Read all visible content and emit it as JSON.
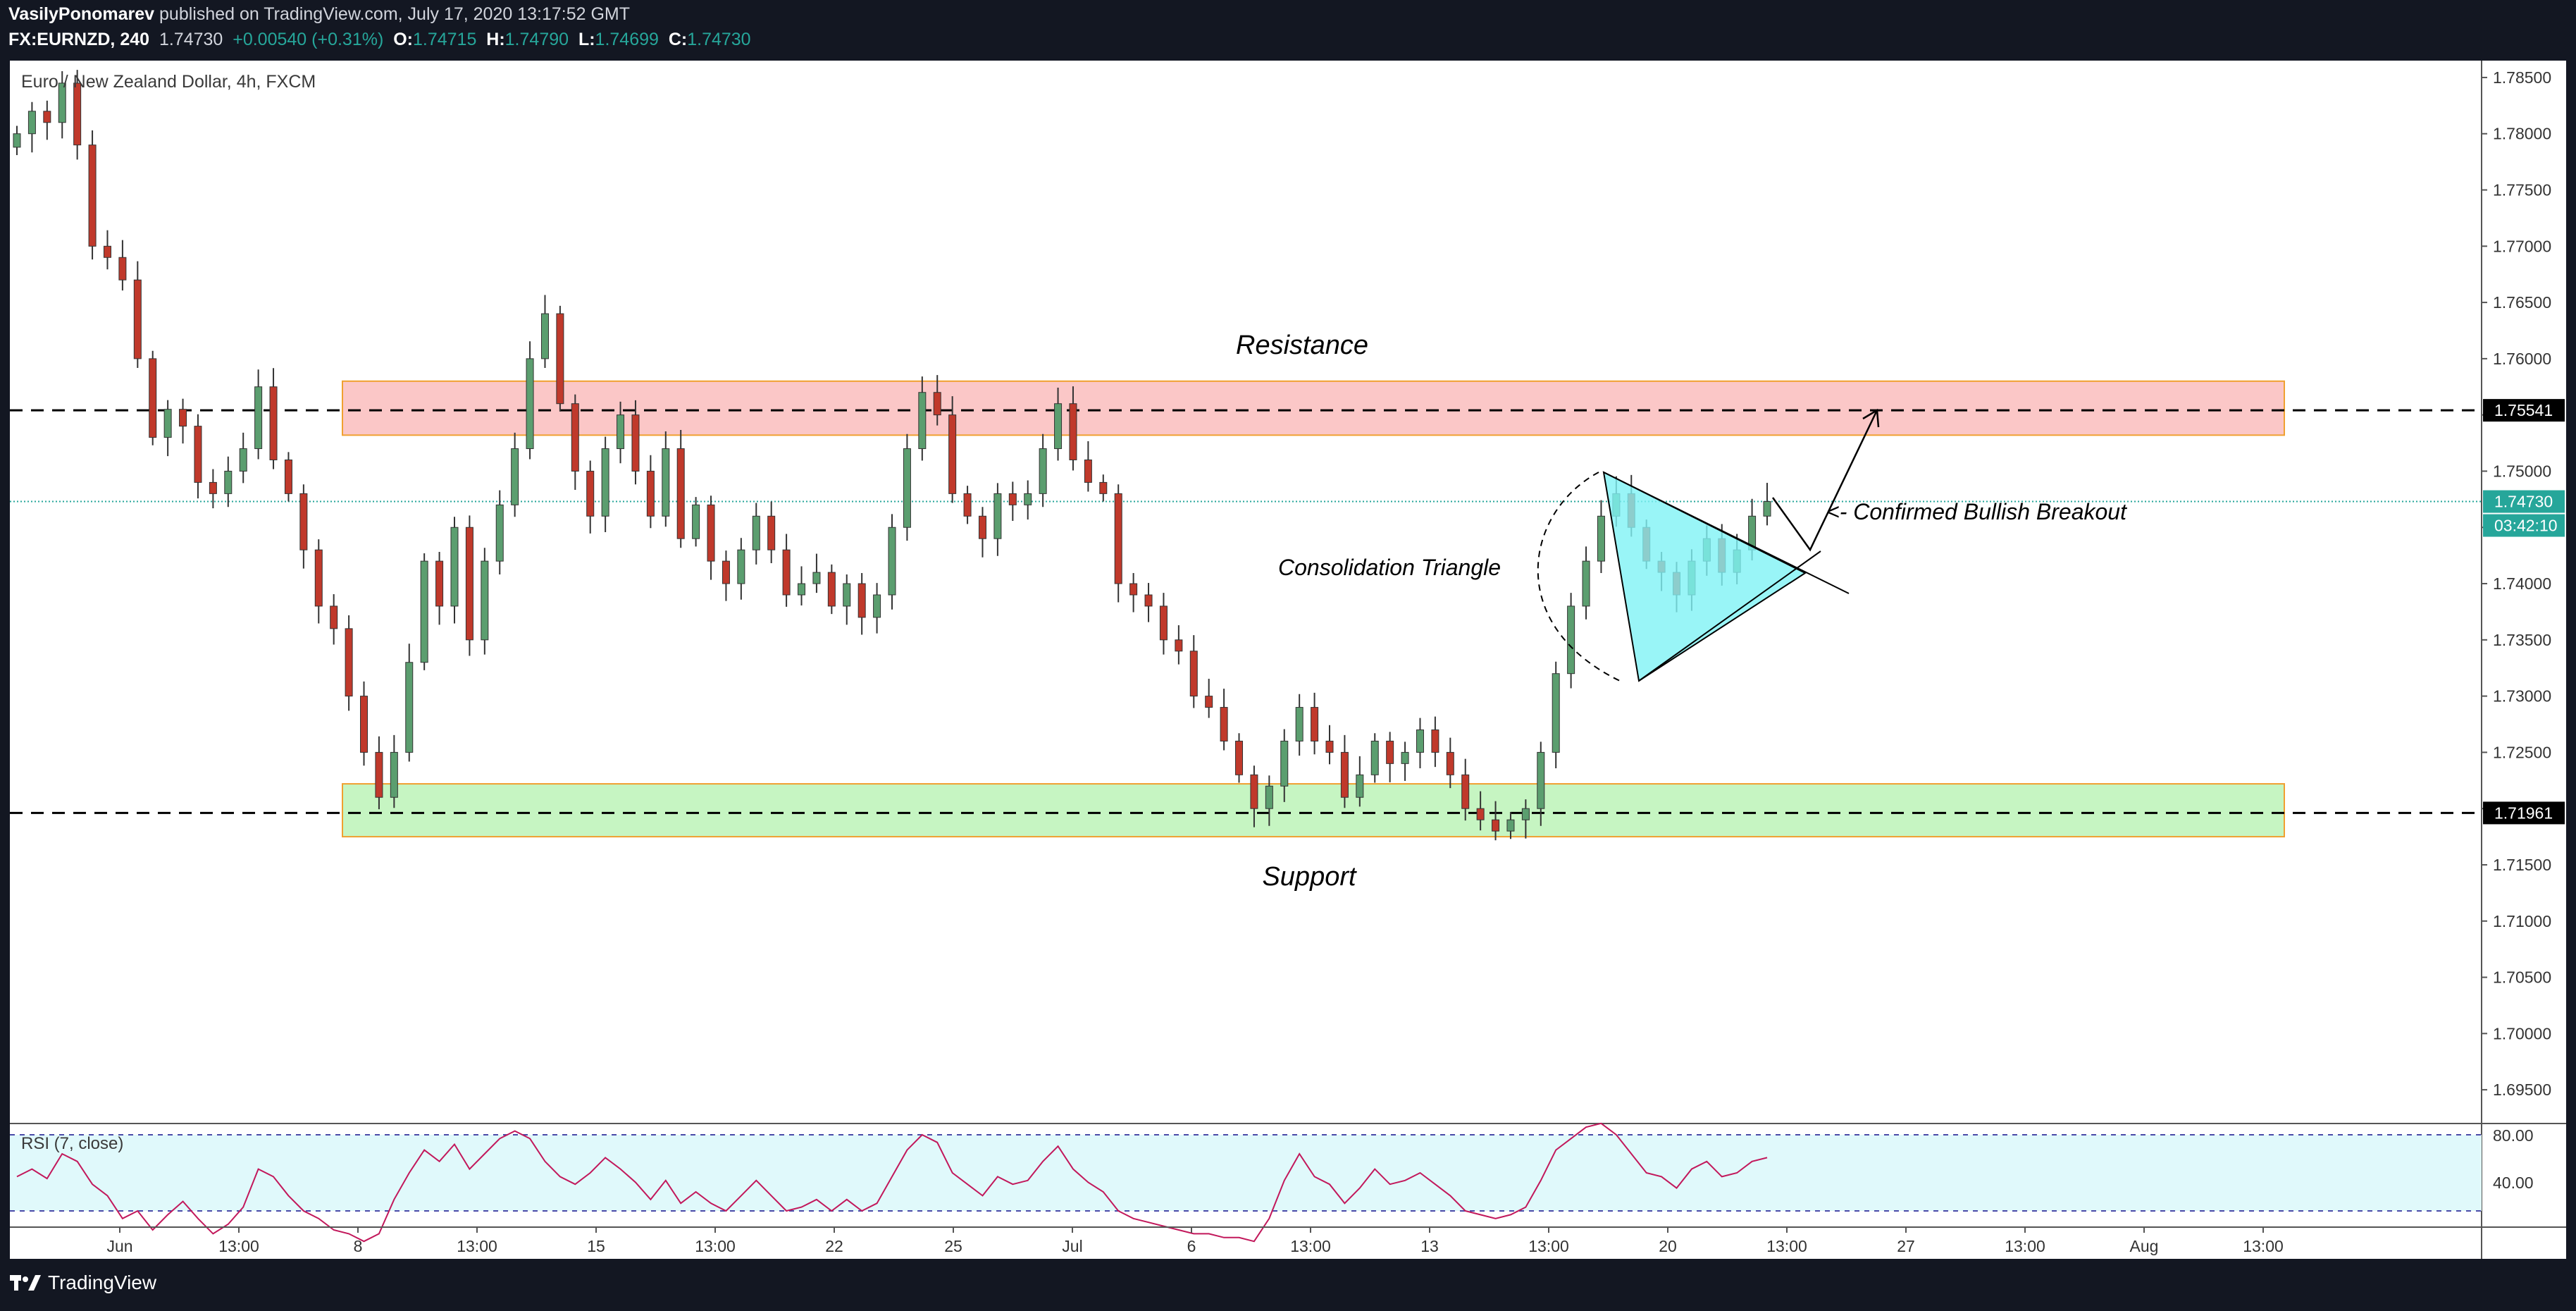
{
  "header": {
    "author": "VasilyPonomarev",
    "published": "published on TradingView.com, July 17, 2020 13:17:52 GMT",
    "symbol": "FX:EURNZD, 240",
    "last": "1.74730",
    "change": "+0.00540 (+0.31%)",
    "o_label": "O:",
    "o": "1.74715",
    "h_label": "H:",
    "h": "1.74790",
    "l_label": "L:",
    "l": "1.74699",
    "c_label": "C:",
    "c": "1.74730"
  },
  "chart_title": "Euro / New Zealand Dollar, 4h, FXCM",
  "footer": {
    "brand": "TradingView"
  },
  "colors": {
    "up": "#26a69a",
    "up_body": "#5b9e6f",
    "down_body": "#c0392b",
    "resistance_fill": "#fbc7c7",
    "support_fill": "#c6f5c2",
    "zone_border": "#f0a030",
    "triangle_fill": "#7ff3f5",
    "rsi": "#c2185b",
    "rsi_band": "#e0f9fb",
    "price_line": "#26a69a"
  },
  "price_scale": {
    "ticks": [
      "1.78500",
      "1.78000",
      "1.77500",
      "1.77000",
      "1.76500",
      "1.76000",
      "1.75500",
      "1.75000",
      "1.74500",
      "1.74000",
      "1.73500",
      "1.73000",
      "1.72500",
      "1.72000",
      "1.71500",
      "1.71000",
      "1.70500",
      "1.70000",
      "1.69500"
    ],
    "resistance_level": "1.75541",
    "support_level": "1.71961",
    "current_price": "1.74730",
    "countdown": "03:42:10"
  },
  "rsi": {
    "label": "RSI (7, close)",
    "levels": [
      "80.00",
      "40.00"
    ]
  },
  "time_axis": [
    "Jun",
    "13:00",
    "8",
    "13:00",
    "15",
    "13:00",
    "22",
    "25",
    "Jul",
    "6",
    "13:00",
    "13",
    "13:00",
    "20",
    "13:00",
    "27",
    "13:00",
    "Aug",
    "13:00"
  ],
  "annotations": {
    "resistance": "Resistance",
    "support": "Support",
    "triangle": "Consolidation Triangle",
    "breakout": "<- Confirmed Bullish Breakout"
  },
  "chart_data": {
    "type": "candlestick",
    "title": "Euro / New Zealand Dollar, 4h, FXCM",
    "ylim": [
      1.692,
      1.7865
    ],
    "resistance_zone": [
      1.7532,
      1.758
    ],
    "support_zone": [
      1.7175,
      1.7222
    ],
    "horizontal_levels": [
      1.75541,
      1.71961
    ],
    "current_price": 1.7473,
    "closes": [
      1.78,
      1.782,
      1.781,
      1.7845,
      1.779,
      1.77,
      1.769,
      1.767,
      1.76,
      1.753,
      1.7555,
      1.754,
      1.749,
      1.748,
      1.75,
      1.752,
      1.7575,
      1.751,
      1.748,
      1.743,
      1.738,
      1.736,
      1.73,
      1.725,
      1.721,
      1.725,
      1.733,
      1.742,
      1.738,
      1.745,
      1.735,
      1.742,
      1.747,
      1.752,
      1.76,
      1.764,
      1.756,
      1.75,
      1.746,
      1.752,
      1.755,
      1.75,
      1.746,
      1.752,
      1.744,
      1.747,
      1.742,
      1.74,
      1.743,
      1.746,
      1.743,
      1.739,
      1.74,
      1.741,
      1.738,
      1.74,
      1.737,
      1.739,
      1.745,
      1.752,
      1.757,
      1.755,
      1.748,
      1.746,
      1.744,
      1.748,
      1.747,
      1.748,
      1.752,
      1.756,
      1.751,
      1.749,
      1.748,
      1.74,
      1.739,
      1.738,
      1.735,
      1.734,
      1.73,
      1.729,
      1.726,
      1.723,
      1.72,
      1.722,
      1.726,
      1.729,
      1.726,
      1.725,
      1.721,
      1.723,
      1.726,
      1.724,
      1.725,
      1.727,
      1.725,
      1.723,
      1.72,
      1.719,
      1.718,
      1.719,
      1.72,
      1.725,
      1.732,
      1.738,
      1.742,
      1.746,
      1.748,
      1.745,
      1.742,
      1.741,
      1.739,
      1.742,
      1.744,
      1.741,
      1.743,
      1.746,
      1.7473
    ],
    "rsi_values": [
      58,
      62,
      57,
      70,
      66,
      54,
      48,
      36,
      40,
      30,
      38,
      45,
      36,
      28,
      33,
      42,
      62,
      58,
      48,
      40,
      36,
      30,
      28,
      24,
      28,
      46,
      60,
      72,
      66,
      75,
      62,
      70,
      78,
      82,
      78,
      66,
      58,
      54,
      60,
      68,
      62,
      55,
      46,
      56,
      44,
      50,
      44,
      40,
      48,
      56,
      48,
      40,
      42,
      46,
      40,
      46,
      40,
      44,
      58,
      72,
      80,
      76,
      60,
      54,
      48,
      58,
      54,
      56,
      66,
      74,
      62,
      55,
      50,
      40,
      36,
      34,
      32,
      30,
      28,
      28,
      26,
      26,
      24,
      36,
      56,
      70,
      58,
      54,
      44,
      52,
      62,
      54,
      56,
      60,
      54,
      48,
      40,
      38,
      36,
      38,
      42,
      56,
      72,
      78,
      84,
      86,
      80,
      70,
      60,
      58,
      52,
      62,
      66,
      58,
      60,
      66,
      68
    ]
  }
}
